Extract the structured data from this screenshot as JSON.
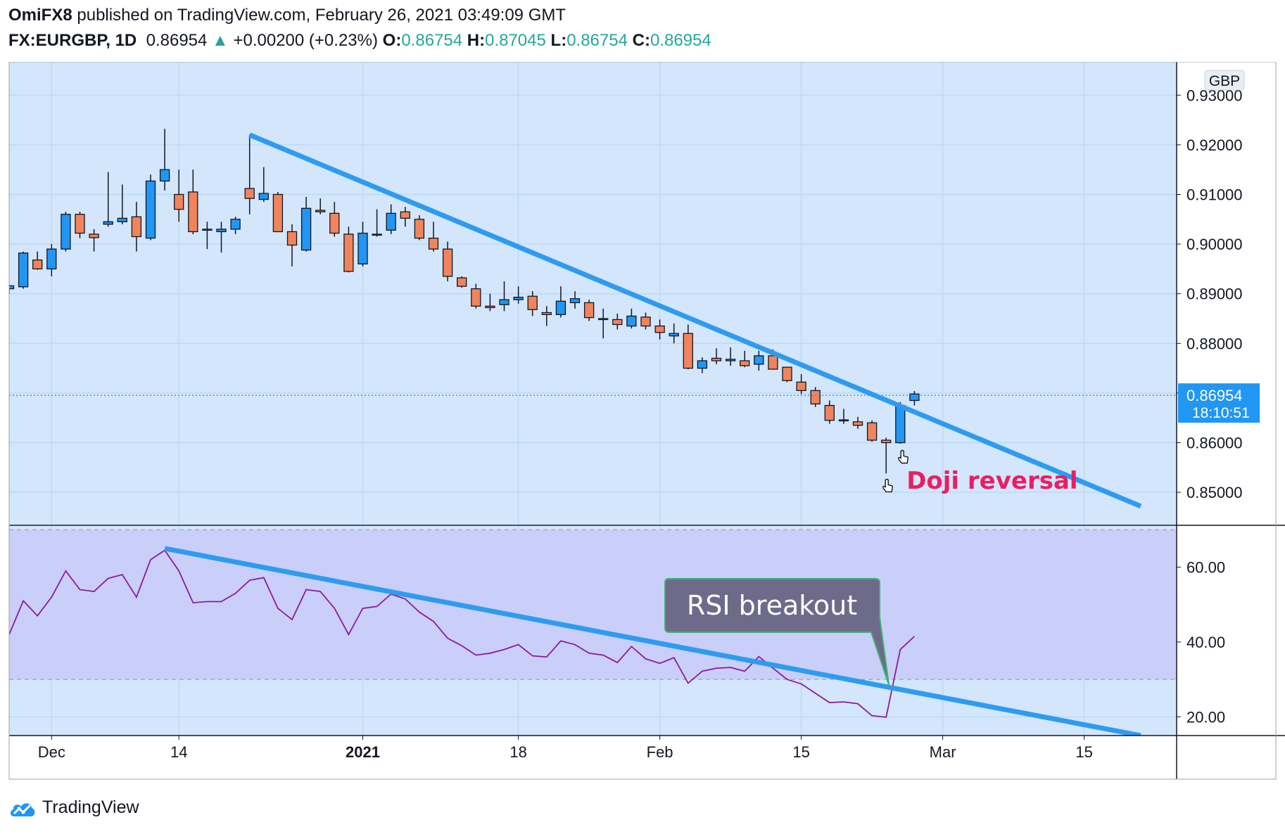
{
  "header": {
    "author": "OmiFX8",
    "published_text": "published on TradingView.com, February 26, 2021 03:49:09 GMT",
    "symbol": "FX:EURGBP, 1D",
    "last": "0.86954",
    "change": "+0.00200 (+0.23%)",
    "o_label": "O:",
    "o": "0.86754",
    "h_label": "H:",
    "h": "0.87045",
    "l_label": "L:",
    "l": "0.86754",
    "c_label": "C:",
    "c": "0.86954"
  },
  "footer": {
    "brand": "TradingView"
  },
  "colors": {
    "up": "#2196f3",
    "down": "#f0845c",
    "trendline": "#2e9bef",
    "rsi": "#8e1a9a",
    "annotation": "#e91e63",
    "background": "#d3e6fb",
    "rsi_band": "#c9cff9"
  },
  "chart_data": [
    {
      "type": "candlestick",
      "currency_label": "GBP",
      "price_tag": {
        "price": "0.86954",
        "countdown": "18:10:51"
      },
      "y_ticks": [
        "0.93000",
        "0.92000",
        "0.91000",
        "0.90000",
        "0.89000",
        "0.88000",
        "0.87000",
        "0.86000",
        "0.85000"
      ],
      "ylim": [
        0.8435,
        0.9367
      ],
      "x_ticks": [
        {
          "label": "Dec",
          "date": "2020-12-01",
          "bold": false
        },
        {
          "label": "14",
          "date": "2020-12-14",
          "bold": false
        },
        {
          "label": "2021",
          "date": "2021-01-01",
          "bold": true
        },
        {
          "label": "18",
          "date": "2021-01-18",
          "bold": false
        },
        {
          "label": "Feb",
          "date": "2021-02-01",
          "bold": false
        },
        {
          "label": "15",
          "date": "2021-02-15",
          "bold": false
        },
        {
          "label": "Mar",
          "date": "2021-03-01",
          "bold": false
        },
        {
          "label": "15",
          "date": "2021-03-15",
          "bold": false
        }
      ],
      "candles": [
        {
          "date": "2020-11-26",
          "o": 0.891,
          "h": 0.8918,
          "l": 0.89,
          "c": 0.8916
        },
        {
          "date": "2020-11-27",
          "o": 0.8914,
          "h": 0.8985,
          "l": 0.891,
          "c": 0.8982
        },
        {
          "date": "2020-11-30",
          "o": 0.8968,
          "h": 0.8985,
          "l": 0.8948,
          "c": 0.895
        },
        {
          "date": "2020-12-01",
          "o": 0.895,
          "h": 0.9,
          "l": 0.8935,
          "c": 0.899
        },
        {
          "date": "2020-12-02",
          "o": 0.899,
          "h": 0.9065,
          "l": 0.8985,
          "c": 0.906
        },
        {
          "date": "2020-12-03",
          "o": 0.906,
          "h": 0.9065,
          "l": 0.9012,
          "c": 0.9022
        },
        {
          "date": "2020-12-04",
          "o": 0.902,
          "h": 0.903,
          "l": 0.8985,
          "c": 0.9013
        },
        {
          "date": "2020-12-07",
          "o": 0.904,
          "h": 0.9145,
          "l": 0.9035,
          "c": 0.9045
        },
        {
          "date": "2020-12-08",
          "o": 0.9045,
          "h": 0.912,
          "l": 0.904,
          "c": 0.9052
        },
        {
          "date": "2020-12-09",
          "o": 0.9055,
          "h": 0.9085,
          "l": 0.8985,
          "c": 0.9015
        },
        {
          "date": "2020-12-10",
          "o": 0.9012,
          "h": 0.914,
          "l": 0.9008,
          "c": 0.9127
        },
        {
          "date": "2020-12-11",
          "o": 0.9127,
          "h": 0.9232,
          "l": 0.9108,
          "c": 0.915
        },
        {
          "date": "2020-12-14",
          "o": 0.91,
          "h": 0.915,
          "l": 0.9045,
          "c": 0.907
        },
        {
          "date": "2020-12-15",
          "o": 0.9105,
          "h": 0.915,
          "l": 0.902,
          "c": 0.9025
        },
        {
          "date": "2020-12-16",
          "o": 0.903,
          "h": 0.9045,
          "l": 0.899,
          "c": 0.9028
        },
        {
          "date": "2020-12-17",
          "o": 0.9025,
          "h": 0.9045,
          "l": 0.8983,
          "c": 0.903
        },
        {
          "date": "2020-12-18",
          "o": 0.903,
          "h": 0.9055,
          "l": 0.902,
          "c": 0.905
        },
        {
          "date": "2020-12-21",
          "o": 0.9112,
          "h": 0.922,
          "l": 0.906,
          "c": 0.9092
        },
        {
          "date": "2020-12-22",
          "o": 0.909,
          "h": 0.9155,
          "l": 0.9085,
          "c": 0.9102
        },
        {
          "date": "2020-12-23",
          "o": 0.91,
          "h": 0.9105,
          "l": 0.9025,
          "c": 0.9025
        },
        {
          "date": "2020-12-24",
          "o": 0.9025,
          "h": 0.904,
          "l": 0.8955,
          "c": 0.8998
        },
        {
          "date": "2020-12-28",
          "o": 0.8988,
          "h": 0.9095,
          "l": 0.8985,
          "c": 0.9072
        },
        {
          "date": "2020-12-29",
          "o": 0.9068,
          "h": 0.9092,
          "l": 0.906,
          "c": 0.9065
        },
        {
          "date": "2020-12-30",
          "o": 0.9062,
          "h": 0.9085,
          "l": 0.9015,
          "c": 0.9022
        },
        {
          "date": "2020-12-31",
          "o": 0.902,
          "h": 0.9035,
          "l": 0.8943,
          "c": 0.8945
        },
        {
          "date": "2021-01-01",
          "o": 0.896,
          "h": 0.9045,
          "l": 0.8955,
          "c": 0.9022
        },
        {
          "date": "2021-01-04",
          "o": 0.902,
          "h": 0.907,
          "l": 0.9015,
          "c": 0.902
        },
        {
          "date": "2021-01-05",
          "o": 0.9028,
          "h": 0.908,
          "l": 0.902,
          "c": 0.9062
        },
        {
          "date": "2021-01-06",
          "o": 0.9065,
          "h": 0.9075,
          "l": 0.9035,
          "c": 0.9052
        },
        {
          "date": "2021-01-07",
          "o": 0.905,
          "h": 0.9058,
          "l": 0.9008,
          "c": 0.9012
        },
        {
          "date": "2021-01-08",
          "o": 0.9012,
          "h": 0.9045,
          "l": 0.8985,
          "c": 0.899
        },
        {
          "date": "2021-01-11",
          "o": 0.899,
          "h": 0.9005,
          "l": 0.8925,
          "c": 0.8935
        },
        {
          "date": "2021-01-12",
          "o": 0.8932,
          "h": 0.8935,
          "l": 0.8912,
          "c": 0.8915
        },
        {
          "date": "2021-01-13",
          "o": 0.891,
          "h": 0.892,
          "l": 0.887,
          "c": 0.8875
        },
        {
          "date": "2021-01-14",
          "o": 0.8875,
          "h": 0.89,
          "l": 0.8865,
          "c": 0.8872
        },
        {
          "date": "2021-01-15",
          "o": 0.8878,
          "h": 0.8925,
          "l": 0.8865,
          "c": 0.8888
        },
        {
          "date": "2021-01-18",
          "o": 0.8888,
          "h": 0.8915,
          "l": 0.888,
          "c": 0.8893
        },
        {
          "date": "2021-01-19",
          "o": 0.8895,
          "h": 0.8905,
          "l": 0.8855,
          "c": 0.8868
        },
        {
          "date": "2021-01-20",
          "o": 0.8862,
          "h": 0.8875,
          "l": 0.8835,
          "c": 0.8858
        },
        {
          "date": "2021-01-21",
          "o": 0.8858,
          "h": 0.8915,
          "l": 0.8852,
          "c": 0.8885
        },
        {
          "date": "2021-01-22",
          "o": 0.8882,
          "h": 0.8905,
          "l": 0.887,
          "c": 0.889
        },
        {
          "date": "2021-01-25",
          "o": 0.8882,
          "h": 0.8888,
          "l": 0.8845,
          "c": 0.8852
        },
        {
          "date": "2021-01-26",
          "o": 0.885,
          "h": 0.887,
          "l": 0.881,
          "c": 0.885
        },
        {
          "date": "2021-01-27",
          "o": 0.8848,
          "h": 0.886,
          "l": 0.8828,
          "c": 0.8838
        },
        {
          "date": "2021-01-28",
          "o": 0.8835,
          "h": 0.887,
          "l": 0.883,
          "c": 0.8855
        },
        {
          "date": "2021-01-29",
          "o": 0.8853,
          "h": 0.8862,
          "l": 0.8828,
          "c": 0.8835
        },
        {
          "date": "2021-02-01",
          "o": 0.8835,
          "h": 0.8848,
          "l": 0.8808,
          "c": 0.8822
        },
        {
          "date": "2021-02-02",
          "o": 0.8815,
          "h": 0.884,
          "l": 0.88,
          "c": 0.882
        },
        {
          "date": "2021-02-03",
          "o": 0.882,
          "h": 0.8838,
          "l": 0.8748,
          "c": 0.875
        },
        {
          "date": "2021-02-04",
          "o": 0.875,
          "h": 0.8772,
          "l": 0.874,
          "c": 0.8765
        },
        {
          "date": "2021-02-05",
          "o": 0.877,
          "h": 0.879,
          "l": 0.8758,
          "c": 0.8765
        },
        {
          "date": "2021-02-08",
          "o": 0.8765,
          "h": 0.8792,
          "l": 0.8755,
          "c": 0.8768
        },
        {
          "date": "2021-02-09",
          "o": 0.8765,
          "h": 0.8785,
          "l": 0.8752,
          "c": 0.8755
        },
        {
          "date": "2021-02-10",
          "o": 0.8758,
          "h": 0.8785,
          "l": 0.8745,
          "c": 0.8775
        },
        {
          "date": "2021-02-11",
          "o": 0.8775,
          "h": 0.8788,
          "l": 0.8748,
          "c": 0.8748
        },
        {
          "date": "2021-02-12",
          "o": 0.8752,
          "h": 0.8752,
          "l": 0.8722,
          "c": 0.8725
        },
        {
          "date": "2021-02-15",
          "o": 0.8722,
          "h": 0.8738,
          "l": 0.8698,
          "c": 0.8705
        },
        {
          "date": "2021-02-16",
          "o": 0.8705,
          "h": 0.8712,
          "l": 0.8672,
          "c": 0.8678
        },
        {
          "date": "2021-02-17",
          "o": 0.8675,
          "h": 0.8685,
          "l": 0.8638,
          "c": 0.8645
        },
        {
          "date": "2021-02-18",
          "o": 0.8645,
          "h": 0.8668,
          "l": 0.8638,
          "c": 0.8646
        },
        {
          "date": "2021-02-19",
          "o": 0.8642,
          "h": 0.8652,
          "l": 0.8628,
          "c": 0.8635
        },
        {
          "date": "2021-02-22",
          "o": 0.864,
          "h": 0.8645,
          "l": 0.8602,
          "c": 0.8605
        },
        {
          "date": "2021-02-23",
          "o": 0.8605,
          "h": 0.861,
          "l": 0.8538,
          "c": 0.86
        },
        {
          "date": "2021-02-24",
          "o": 0.86,
          "h": 0.8682,
          "l": 0.8598,
          "c": 0.8675
        },
        {
          "date": "2021-02-25",
          "o": 0.8685,
          "h": 0.8704,
          "l": 0.8675,
          "c": 0.8698
        }
      ],
      "last_price_line": 0.86954,
      "trendline": {
        "from": {
          "date": "2020-12-21",
          "price": 0.922
        },
        "to": {
          "date": "2021-03-21",
          "price": 0.8472
        }
      },
      "annotation": {
        "text": "Doji reversal",
        "date": "2021-02-23"
      }
    },
    {
      "type": "line",
      "name": "RSI",
      "y_ticks": [
        "60.00",
        "40.00",
        "20.00"
      ],
      "ylim": [
        15,
        71
      ],
      "band": [
        30,
        70
      ],
      "values": [
        42,
        51,
        47,
        52,
        59,
        54,
        53.5,
        57,
        58,
        52,
        62,
        64.5,
        59,
        50.5,
        50.8,
        50.8,
        53,
        56.5,
        57.2,
        49,
        46,
        54,
        53.5,
        49,
        42,
        49,
        49.5,
        52.8,
        51.5,
        48,
        45.5,
        41,
        39,
        36.5,
        37,
        38,
        39.3,
        36.3,
        36,
        40.3,
        39.3,
        37,
        36.5,
        34.5,
        38.8,
        35.5,
        34.3,
        35.8,
        29,
        32.2,
        33,
        33.2,
        32.2,
        36.1,
        33,
        30,
        28.8,
        26.3,
        23.8,
        24,
        23.5,
        20.3,
        19.9,
        38,
        41.5
      ],
      "trendline": {
        "from": {
          "date": "2020-12-11",
          "value": 65.0
        },
        "to": {
          "date": "2021-03-19",
          "value": 15.0
        }
      },
      "callout": {
        "text": "RSI breakout",
        "date": "2021-02-23"
      }
    }
  ]
}
